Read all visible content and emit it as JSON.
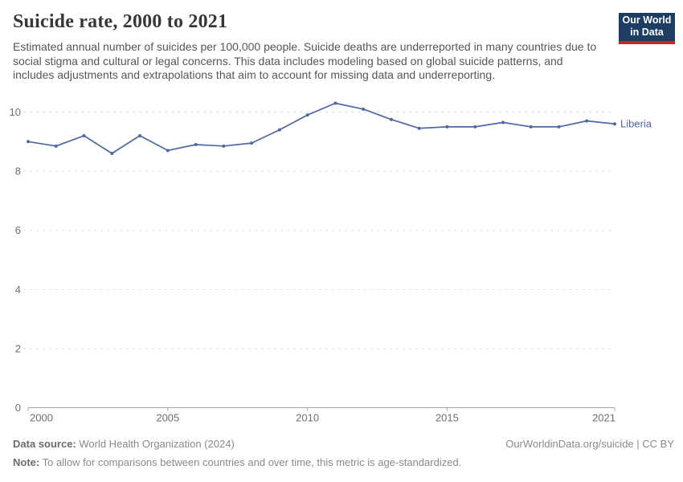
{
  "header": {
    "title": "Suicide rate, 2000 to 2021",
    "subtitle": "Estimated annual number of suicides per 100,000 people. Suicide deaths are underreported in many countries due to social stigma and cultural or legal concerns. This data includes modeling based on global suicide patterns, and includes adjustments and extrapolations that aim to account for missing data and underreporting."
  },
  "logo": {
    "line1": "Our World",
    "line2": "in Data",
    "bg_color": "#1D3D63",
    "accent_color": "#C0272D"
  },
  "chart_data": {
    "type": "line",
    "title": "Suicide rate, 2000 to 2021",
    "xlabel": "",
    "ylabel": "",
    "x": [
      2000,
      2001,
      2002,
      2003,
      2004,
      2005,
      2006,
      2007,
      2008,
      2009,
      2010,
      2011,
      2012,
      2013,
      2014,
      2015,
      2016,
      2017,
      2018,
      2019,
      2020,
      2021
    ],
    "series": [
      {
        "name": "Liberia",
        "color": "#4D68A2",
        "values": [
          9.0,
          8.85,
          9.2,
          8.6,
          9.2,
          8.7,
          8.9,
          8.85,
          8.95,
          9.4,
          9.9,
          10.3,
          10.1,
          9.75,
          9.45,
          9.5,
          9.5,
          9.65,
          9.5,
          9.5,
          9.7,
          9.6
        ]
      }
    ],
    "ylim": [
      0,
      10
    ],
    "ytick_values": [
      0,
      2,
      4,
      6,
      8,
      10
    ],
    "xtick_values": [
      2000,
      2005,
      2010,
      2015,
      2021
    ],
    "grid": "horizontal-dashed",
    "legend": "end-of-line-label",
    "axis_color": "#a6a6a6",
    "grid_color": "#dcdcdc",
    "tick_label_color": "#6e6e6e"
  },
  "footer": {
    "datasource_label": "Data source:",
    "datasource_value": " World Health Organization (2024)",
    "credit": "OurWorldinData.org/suicide | CC BY",
    "note_label": "Note:",
    "note_value": " To allow for comparisons between countries and over time, this metric is age-standardized."
  }
}
